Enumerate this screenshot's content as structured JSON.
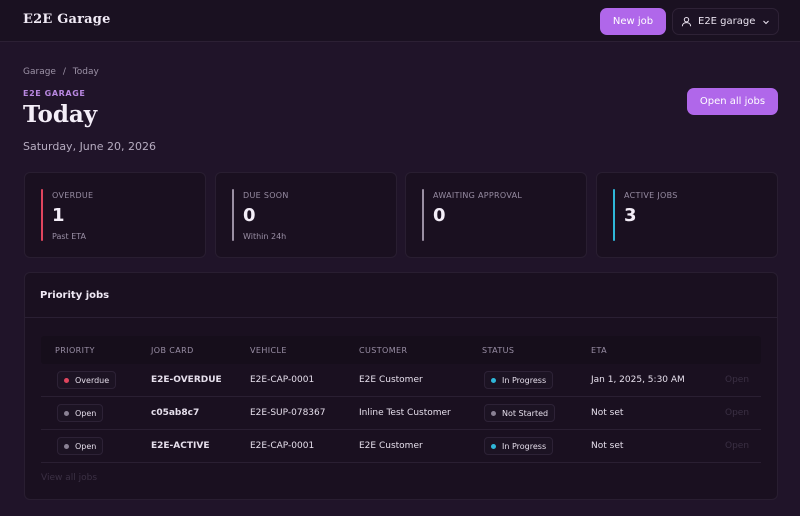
{
  "header": {
    "brand": "E2E Garage",
    "new_job": "New job",
    "account_name": "E2E garage"
  },
  "breadcrumb": [
    "Garage",
    "/",
    "Today"
  ],
  "eyebrow": "E2E GARAGE",
  "title": "Today",
  "date": "Saturday, June 20, 2026",
  "open_all_jobs": "Open all jobs",
  "stats": [
    {
      "label": "OVERDUE",
      "value": "1",
      "sub": "Past ETA",
      "color": "#e0455e"
    },
    {
      "label": "DUE SOON",
      "value": "0",
      "sub": "Within 24h",
      "color": "#9a8fa3"
    },
    {
      "label": "AWAITING APPROVAL",
      "value": "0",
      "sub": "",
      "color": "#9a8fa3"
    },
    {
      "label": "ACTIVE JOBS",
      "value": "3",
      "sub": "",
      "color": "#2fb7d9"
    }
  ],
  "priority": {
    "title": "Priority jobs",
    "columns": [
      "PRIORITY",
      "JOB CARD",
      "VEHICLE",
      "CUSTOMER",
      "STATUS",
      "ETA"
    ],
    "rows": [
      {
        "priority": "Overdue",
        "priority_color": "#e0455e",
        "job_card": "E2E-OVERDUE",
        "vehicle": "E2E-CAP-0001",
        "customer": "E2E Customer",
        "status": "In Progress",
        "status_color": "#2fb7d9",
        "eta": "Jan 1, 2025, 5:30 AM",
        "action": "Open"
      },
      {
        "priority": "Open",
        "priority_color": "#8a8194",
        "job_card": "c05ab8c7",
        "vehicle": "E2E-SUP-078367",
        "customer": "Inline Test Customer",
        "status": "Not Started",
        "status_color": "#8a8194",
        "eta": "Not set",
        "action": "Open"
      },
      {
        "priority": "Open",
        "priority_color": "#8a8194",
        "job_card": "E2E-ACTIVE",
        "vehicle": "E2E-CAP-0001",
        "customer": "E2E Customer",
        "status": "In Progress",
        "status_color": "#2fb7d9",
        "eta": "Not set",
        "action": "Open"
      }
    ],
    "view_all": "View all jobs"
  }
}
